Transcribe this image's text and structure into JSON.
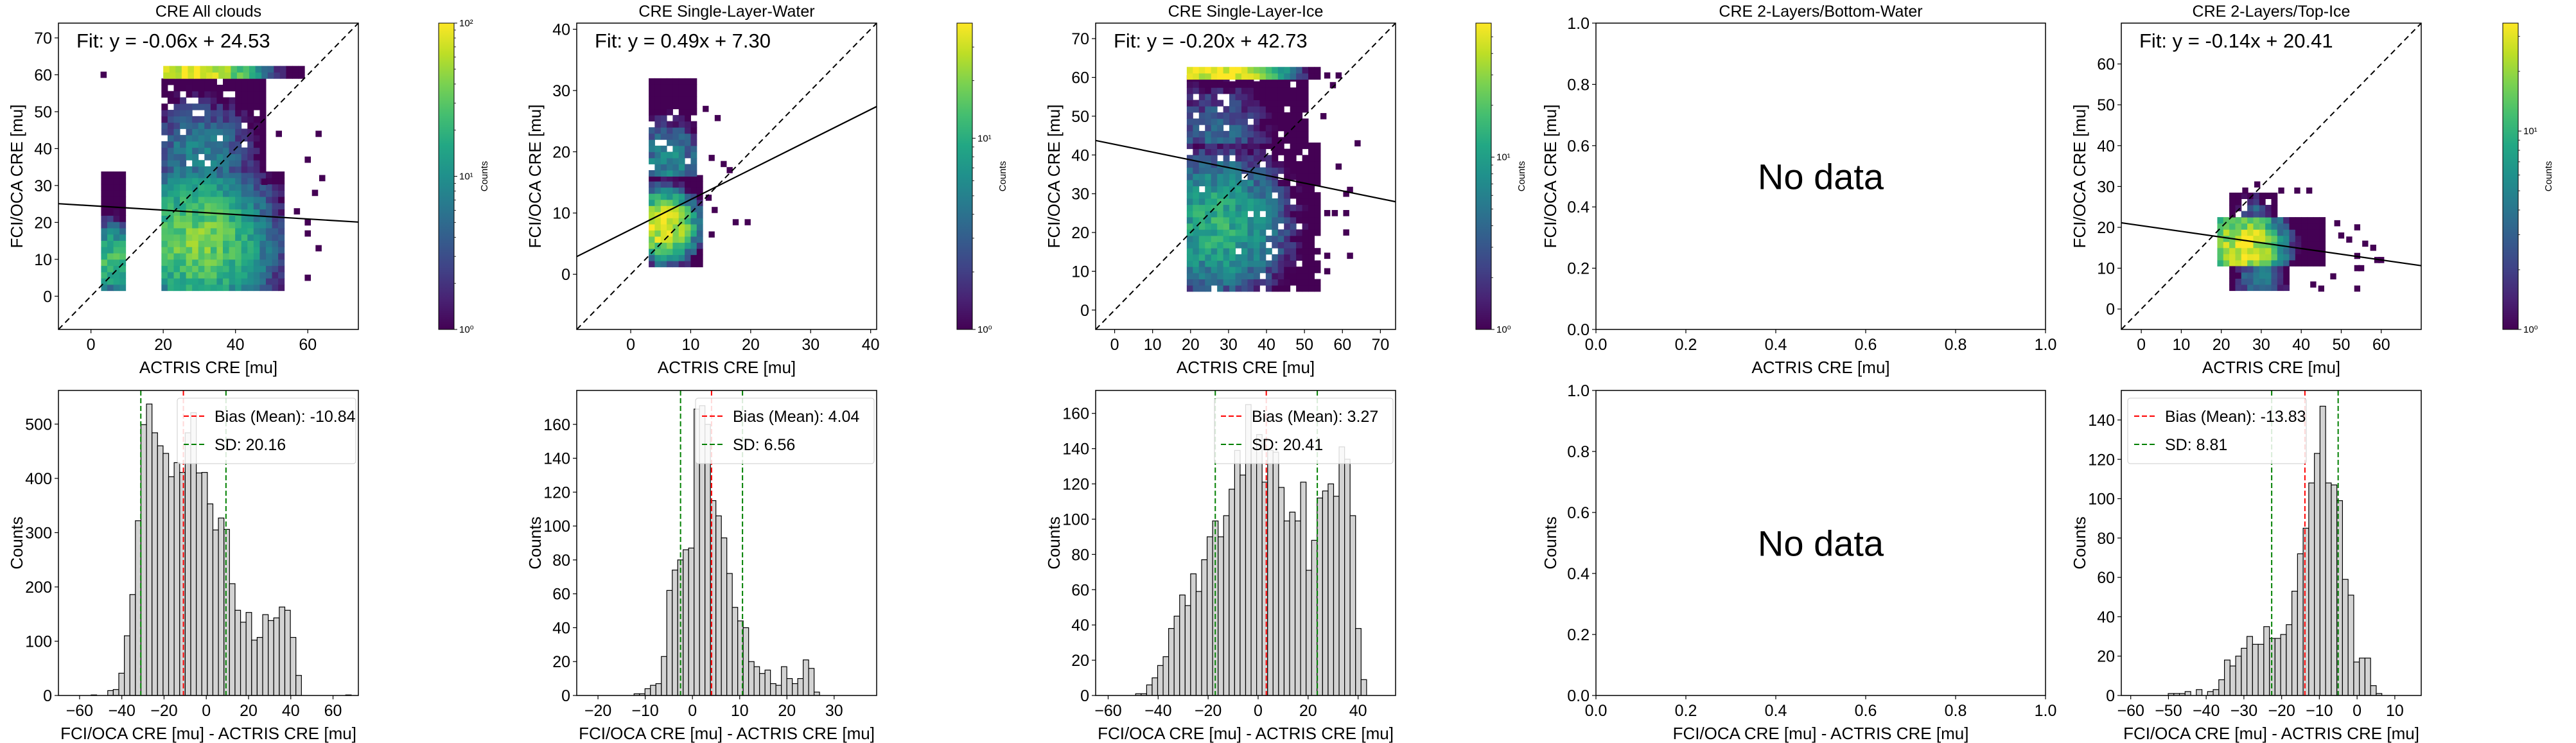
{
  "figure": {
    "scatter_xlabel": "ACTRIS CRE [mu]",
    "scatter_ylabel": "FCI/OCA CRE [mu]",
    "hist_xlabel": "FCI/OCA CRE [mu] - ACTRIS CRE [mu]",
    "hist_ylabel": "Counts",
    "colorbar_label": "Counts",
    "no_data_text": "No data"
  },
  "colors": {
    "bar_fill": "#d3d3d3",
    "bar_edge": "#000000",
    "bias_line": "#ff0000",
    "sd_line": "#008000",
    "fit_line": "#000000",
    "one_to_one": "#000000"
  },
  "chart_data": [
    {
      "type": "heatmap",
      "title": "CRE All clouds",
      "fit_text": "Fit: y = -0.06x + 24.53",
      "fit": {
        "slope": -0.06,
        "intercept": 24.53
      },
      "xlim": [
        -9,
        74
      ],
      "ylim": [
        -9,
        74
      ],
      "xticks": [
        0,
        20,
        40,
        60
      ],
      "yticks": [
        0,
        10,
        20,
        30,
        40,
        50,
        60,
        70
      ],
      "bin": 1.7,
      "colorbar": {
        "min": 1,
        "max": 100,
        "ticks": [
          {
            "v": 1,
            "label": "10⁰"
          },
          {
            "v": 10,
            "label": "10¹"
          },
          {
            "v": 100,
            "label": "10²"
          }
        ]
      },
      "regions": [
        {
          "x0": 19.5,
          "x1": 52.5,
          "y0": 1.5,
          "y1": 33.5,
          "peak": [
            30,
            15
          ],
          "peak_val": 40,
          "spread": 14
        },
        {
          "x0": 19.5,
          "x1": 47.5,
          "y0": 33.5,
          "y1": 58.5,
          "peak": [
            30,
            38
          ],
          "peak_val": 8,
          "spread": 12
        },
        {
          "x0": 2.8,
          "x1": 9.5,
          "y0": 1.5,
          "y1": 32.5,
          "peak": [
            5.5,
            10
          ],
          "peak_val": 25,
          "spread": 7
        },
        {
          "x0": 20,
          "x1": 58,
          "y0": 59,
          "y1": 61,
          "peak": [
            28,
            60
          ],
          "peak_val": 100,
          "spread": 12
        }
      ],
      "sparse_cells": [
        [
          3.5,
          60
        ],
        [
          63,
          44
        ],
        [
          60,
          37
        ],
        [
          64,
          32
        ],
        [
          62,
          28
        ],
        [
          60,
          20
        ],
        [
          60,
          17
        ],
        [
          63,
          13
        ],
        [
          60,
          5
        ],
        [
          52,
          44
        ],
        [
          48,
          31
        ],
        [
          57,
          23
        ]
      ]
    },
    {
      "type": "heatmap",
      "title": "CRE Single-Layer-Water",
      "fit_text": "Fit: y = 0.49x + 7.30",
      "fit": {
        "slope": 0.49,
        "intercept": 7.3
      },
      "xlim": [
        -9,
        41
      ],
      "ylim": [
        -9,
        41
      ],
      "xticks": [
        0,
        10,
        20,
        30,
        40
      ],
      "yticks": [
        0,
        10,
        20,
        30,
        40
      ],
      "bin": 1.0,
      "colorbar": {
        "min": 1,
        "max": 40,
        "ticks": [
          {
            "v": 1,
            "label": "10⁰"
          },
          {
            "v": 10,
            "label": "10¹"
          }
        ]
      },
      "regions": [
        {
          "x0": 3,
          "x1": 12,
          "y0": 1.2,
          "y1": 16,
          "peak": [
            5.5,
            8
          ],
          "peak_val": 40,
          "spread": 4
        },
        {
          "x0": 3,
          "x1": 11,
          "y0": 16,
          "y1": 31.5,
          "peak": [
            6,
            18
          ],
          "peak_val": 6,
          "spread": 6
        }
      ],
      "sparse_cells": [
        [
          17.5,
          8.5
        ],
        [
          19.5,
          8.5
        ],
        [
          14.5,
          25.5
        ],
        [
          12.5,
          27
        ],
        [
          16.5,
          17
        ],
        [
          15.5,
          18
        ],
        [
          13.5,
          19
        ],
        [
          13,
          12.5
        ],
        [
          14,
          10.5
        ],
        [
          13.5,
          6.5
        ]
      ]
    },
    {
      "type": "heatmap",
      "title": "CRE Single-Layer-Ice",
      "fit_text": "Fit: y = -0.20x + 42.73",
      "fit": {
        "slope": -0.2,
        "intercept": 42.73
      },
      "xlim": [
        -5,
        74
      ],
      "ylim": [
        -5,
        74
      ],
      "xticks": [
        0,
        10,
        20,
        30,
        40,
        50,
        60,
        70
      ],
      "yticks": [
        0,
        10,
        20,
        30,
        40,
        50,
        60,
        70
      ],
      "bin": 1.6,
      "colorbar": {
        "min": 1,
        "max": 60,
        "ticks": [
          {
            "v": 1,
            "label": "10⁰"
          },
          {
            "v": 10,
            "label": "10¹"
          }
        ]
      },
      "regions": [
        {
          "x0": 19,
          "x1": 53,
          "y0": 4.8,
          "y1": 43,
          "peak": [
            27,
            22
          ],
          "peak_val": 14,
          "spread": 14
        },
        {
          "x0": 19,
          "x1": 50,
          "y0": 43,
          "y1": 59.5,
          "peak": [
            27,
            45
          ],
          "peak_val": 4,
          "spread": 12
        },
        {
          "x0": 19,
          "x1": 54,
          "y0": 59.5,
          "y1": 61.5,
          "peak": [
            28,
            60
          ],
          "peak_val": 60,
          "spread": 12
        }
      ],
      "sparse_cells": [
        [
          56,
          60.5
        ],
        [
          59,
          60.5
        ],
        [
          57.5,
          58
        ],
        [
          64,
          43
        ],
        [
          59,
          37
        ],
        [
          62,
          31
        ],
        [
          61,
          30
        ],
        [
          56,
          25
        ],
        [
          58,
          25
        ],
        [
          61,
          25
        ],
        [
          61,
          20
        ],
        [
          56,
          14
        ],
        [
          62,
          14
        ],
        [
          56,
          10
        ],
        [
          55,
          50
        ]
      ]
    },
    {
      "type": "heatmap",
      "title": "CRE 2-Layers/Bottom-Water",
      "empty": true,
      "xlim": [
        0,
        1
      ],
      "ylim": [
        0,
        1
      ],
      "xticks": [
        0.0,
        0.2,
        0.4,
        0.6,
        0.8,
        1.0
      ],
      "yticks": [
        0.0,
        0.2,
        0.4,
        0.6,
        0.8,
        1.0
      ],
      "tick_format": 1
    },
    {
      "type": "heatmap",
      "title": "CRE 2-Layers/Top-Ice",
      "fit_text": "Fit: y = -0.14x + 20.41",
      "fit": {
        "slope": -0.14,
        "intercept": 20.41
      },
      "xlim": [
        -5,
        70
      ],
      "ylim": [
        -5,
        70
      ],
      "xticks": [
        0,
        10,
        20,
        30,
        40,
        50,
        60
      ],
      "yticks": [
        0,
        10,
        20,
        30,
        40,
        50,
        60
      ],
      "bin": 1.5,
      "colorbar": {
        "min": 1,
        "max": 35,
        "ticks": [
          {
            "v": 1,
            "label": "10⁰"
          },
          {
            "v": 10,
            "label": "10¹"
          }
        ]
      },
      "regions": [
        {
          "x0": 19,
          "x1": 46,
          "y0": 10.5,
          "y1": 22.5,
          "peak": [
            26,
            15.5
          ],
          "peak_val": 35,
          "spread": 7
        },
        {
          "x0": 22,
          "x1": 37,
          "y0": 4.5,
          "y1": 10.5,
          "peak": [
            30,
            8
          ],
          "peak_val": 4,
          "spread": 6
        },
        {
          "x0": 22,
          "x1": 33,
          "y0": 22.5,
          "y1": 27.5,
          "peak": [
            28,
            24
          ],
          "peak_val": 3,
          "spread": 4
        }
      ],
      "sparse_cells": [
        [
          29,
          30.5
        ],
        [
          26,
          29
        ],
        [
          35,
          29
        ],
        [
          39,
          29
        ],
        [
          42,
          29
        ],
        [
          49,
          21
        ],
        [
          54,
          20
        ],
        [
          50,
          18
        ],
        [
          52,
          17
        ],
        [
          56,
          16
        ],
        [
          58,
          15
        ],
        [
          54,
          13
        ],
        [
          59,
          12
        ],
        [
          60,
          12
        ],
        [
          54,
          10
        ],
        [
          55,
          10
        ],
        [
          54,
          5
        ],
        [
          45,
          5
        ],
        [
          48,
          8
        ],
        [
          43,
          6
        ]
      ]
    },
    {
      "type": "bar",
      "subtype": "histogram",
      "xlim": [
        -70,
        72
      ],
      "ylim": [
        0,
        562
      ],
      "xticks": [
        -60,
        -40,
        -20,
        0,
        20,
        40,
        60
      ],
      "yticks": [
        0,
        100,
        200,
        300,
        400,
        500
      ],
      "bin_start": -65,
      "bin_width": 2.62,
      "values": [
        0,
        0,
        0,
        0,
        1,
        0,
        0,
        9,
        11,
        41,
        110,
        186,
        322,
        499,
        537,
        484,
        460,
        446,
        403,
        429,
        411,
        484,
        521,
        410,
        411,
        353,
        305,
        327,
        306,
        206,
        157,
        135,
        153,
        102,
        107,
        149,
        138,
        143,
        163,
        157,
        107,
        37,
        0,
        0,
        0,
        0,
        0,
        0,
        0,
        0,
        1,
        0
      ],
      "bias": -10.84,
      "sd": 20.16,
      "bias_label": "Bias (Mean): -10.84",
      "sd_label": "SD: 20.16",
      "legend_loc": "top-right"
    },
    {
      "type": "bar",
      "subtype": "histogram",
      "xlim": [
        -24.5,
        39
      ],
      "ylim": [
        0,
        180
      ],
      "xticks": [
        -20,
        -10,
        0,
        10,
        20,
        30
      ],
      "yticks": [
        0,
        20,
        40,
        60,
        80,
        100,
        120,
        140,
        160
      ],
      "bin_start": -21.6,
      "bin_width": 1.155,
      "values": [
        0,
        0,
        0,
        0,
        0,
        0,
        0,
        0,
        1,
        1,
        4,
        6,
        7,
        23,
        62,
        74,
        80,
        86,
        87,
        169,
        171,
        160,
        115,
        106,
        93,
        72,
        52,
        44,
        40,
        20,
        17,
        13,
        15,
        7,
        6,
        17,
        10,
        7,
        10,
        21,
        16,
        2,
        0,
        0,
        0,
        0,
        0,
        0,
        0,
        0
      ],
      "bias": 4.04,
      "sd": 6.56,
      "bias_label": "Bias (Mean): 4.04",
      "sd_label": "SD: 6.56",
      "legend_loc": "top-right"
    },
    {
      "type": "bar",
      "subtype": "histogram",
      "xlim": [
        -65,
        55
      ],
      "ylim": [
        0,
        173
      ],
      "xticks": [
        -60,
        -40,
        -20,
        0,
        20,
        40
      ],
      "yticks": [
        0,
        20,
        40,
        60,
        80,
        100,
        120,
        140,
        160
      ],
      "bin_start": -60,
      "bin_width": 2.2,
      "values": [
        0,
        0,
        0,
        0,
        0,
        1,
        1,
        6,
        10,
        17,
        22,
        38,
        45,
        57,
        51,
        69,
        59,
        77,
        90,
        99,
        90,
        102,
        117,
        139,
        125,
        165,
        140,
        148,
        121,
        139,
        138,
        118,
        99,
        104,
        99,
        121,
        71,
        88,
        112,
        116,
        120,
        113,
        141,
        134,
        102,
        38,
        9,
        0,
        0,
        0,
        0,
        0
      ],
      "bias": 3.27,
      "sd": 20.41,
      "bias_label": "Bias (Mean): 3.27",
      "sd_label": "SD: 20.41",
      "legend_loc": "top-right"
    },
    {
      "type": "bar",
      "subtype": "histogram",
      "empty": true,
      "xlim": [
        0,
        1
      ],
      "ylim": [
        0,
        1
      ],
      "xticks": [
        0.0,
        0.2,
        0.4,
        0.6,
        0.8,
        1.0
      ],
      "yticks": [
        0.0,
        0.2,
        0.4,
        0.6,
        0.8,
        1.0
      ],
      "tick_format": 1
    },
    {
      "type": "bar",
      "subtype": "histogram",
      "xlim": [
        -62.5,
        17
      ],
      "ylim": [
        0,
        155
      ],
      "xticks": [
        -60,
        -50,
        -40,
        -30,
        -20,
        -10,
        0,
        10
      ],
      "yticks": [
        0,
        20,
        40,
        60,
        80,
        100,
        120,
        140
      ],
      "bin_start": -59,
      "bin_width": 1.49,
      "values": [
        0,
        0,
        0,
        0,
        0,
        0,
        1,
        1,
        1,
        2,
        0,
        3,
        0,
        2,
        3,
        8,
        18,
        15,
        20,
        24,
        30,
        26,
        26,
        35,
        29,
        29,
        31,
        36,
        53,
        72,
        85,
        108,
        123,
        147,
        108,
        107,
        99,
        59,
        51,
        17,
        19,
        19,
        5,
        1,
        0,
        0,
        0,
        0,
        0,
        0,
        0,
        0,
        0
      ],
      "bias": -13.83,
      "sd": 8.81,
      "bias_label": "Bias (Mean): -13.83",
      "sd_label": "SD: 8.81",
      "legend_loc": "top-left"
    }
  ]
}
